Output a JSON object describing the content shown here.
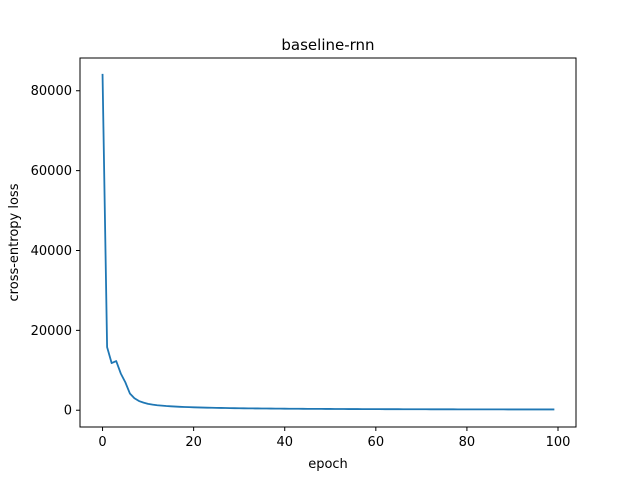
{
  "chart_data": {
    "type": "line",
    "title": "baseline-rnn",
    "xlabel": "epoch",
    "ylabel": "cross-entropy loss",
    "xlim": [
      -4.95,
      103.95
    ],
    "ylim": [
      -4200,
      88200
    ],
    "xticks": [
      0,
      20,
      40,
      60,
      80,
      100
    ],
    "yticks": [
      0,
      20000,
      40000,
      60000,
      80000
    ],
    "grid": false,
    "series": [
      {
        "color": "#1f77b4",
        "x": [
          0,
          1,
          2,
          3,
          4,
          5,
          6,
          7,
          8,
          9,
          10,
          11,
          12,
          13,
          14,
          15,
          16,
          17,
          18,
          19,
          20,
          21,
          22,
          23,
          24,
          25,
          26,
          27,
          28,
          29,
          30,
          31,
          32,
          33,
          34,
          35,
          36,
          37,
          38,
          39,
          40,
          41,
          42,
          43,
          44,
          45,
          46,
          47,
          48,
          49,
          50,
          51,
          52,
          53,
          54,
          55,
          56,
          57,
          58,
          59,
          60,
          61,
          62,
          63,
          64,
          65,
          66,
          67,
          68,
          69,
          70,
          71,
          72,
          73,
          74,
          75,
          76,
          77,
          78,
          79,
          80,
          81,
          82,
          83,
          84,
          85,
          86,
          87,
          88,
          89,
          90,
          91,
          92,
          93,
          94,
          95,
          96,
          97,
          98,
          99
        ],
        "y": [
          84000,
          15800,
          11800,
          12300,
          9200,
          7000,
          4200,
          3000,
          2300,
          1900,
          1600,
          1400,
          1250,
          1150,
          1050,
          980,
          920,
          860,
          810,
          770,
          730,
          700,
          670,
          640,
          615,
          590,
          570,
          550,
          530,
          515,
          500,
          485,
          470,
          458,
          446,
          435,
          424,
          414,
          404,
          395,
          386,
          378,
          370,
          362,
          355,
          348,
          341,
          335,
          329,
          323,
          318,
          312,
          307,
          302,
          297,
          292,
          288,
          284,
          280,
          276,
          272,
          268,
          265,
          262,
          258,
          255,
          252,
          249,
          246,
          243,
          240,
          237,
          235,
          232,
          230,
          228,
          226,
          224,
          222,
          220,
          218,
          216,
          214,
          212,
          210,
          209,
          207,
          206,
          204,
          203,
          201,
          200,
          199,
          198,
          197,
          196,
          195,
          195,
          194,
          200
        ]
      }
    ]
  }
}
